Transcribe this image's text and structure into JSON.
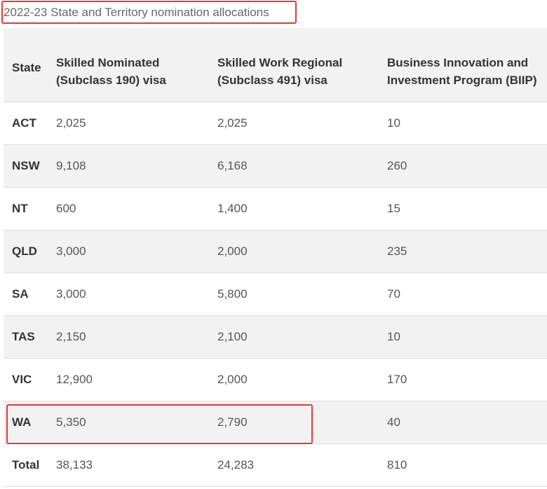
{
  "caption": "2022-23 State and Territory nomination allocations",
  "table": {
    "headers": [
      "State",
      "Skilled Nominated (Subclass 190) visa",
      "Skilled Work Regional (Subclass 491) visa",
      "Business Innovation and Investment Program (BIIP)"
    ],
    "rows": [
      [
        "ACT",
        "2,025",
        "2,025",
        "10"
      ],
      [
        "NSW",
        "9,108",
        "6,168",
        "260"
      ],
      [
        "NT",
        "600",
        "1,400",
        "15"
      ],
      [
        "QLD",
        "3,000",
        "2,000",
        "235"
      ],
      [
        "SA",
        "3,000",
        "5,800",
        "70"
      ],
      [
        "TAS",
        "2,150",
        "2,100",
        "10"
      ],
      [
        "VIC",
        "12,900",
        "2,000",
        "170"
      ],
      [
        "WA",
        "5,350",
        "2,790",
        "40"
      ],
      [
        "Total",
        "38,133",
        "24,283",
        "810"
      ]
    ]
  },
  "colors": {
    "highlight": "#e53935",
    "row_alt": "#f2f2f2",
    "border": "#dddddd"
  }
}
